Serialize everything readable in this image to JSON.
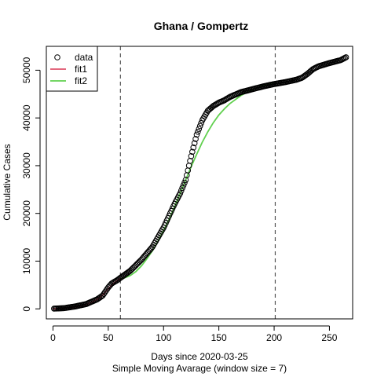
{
  "chart_data": {
    "type": "scatter",
    "title": "Ghana / Gompertz",
    "xlabel": "Days since 2020-03-25",
    "ylabel": "Cumulative Cases",
    "subtitle": "Simple Moving Avarage (window size = 7)",
    "xlim": [
      -6,
      271
    ],
    "ylim": [
      -2100,
      55000
    ],
    "x_ticks": [
      0,
      50,
      100,
      150,
      200,
      250
    ],
    "x_tick_labels": [
      "0",
      "50",
      "100",
      "150",
      "200",
      "250"
    ],
    "y_ticks": [
      0,
      10000,
      20000,
      30000,
      40000,
      50000
    ],
    "y_tick_labels": [
      "0",
      "10000",
      "20000",
      "30000",
      "40000",
      "50000"
    ],
    "grid": false,
    "legend_position": "top-left",
    "legend": [
      {
        "label": "data",
        "kind": "circle",
        "color": "#000000"
      },
      {
        "label": "fit1",
        "kind": "line",
        "color": "#DF536B"
      },
      {
        "label": "fit2",
        "kind": "line",
        "color": "#61D04F"
      }
    ],
    "vlines": [
      61,
      201
    ],
    "data_anchors": {
      "x": [
        1,
        10,
        20,
        30,
        40,
        45,
        50,
        53,
        58,
        61,
        70,
        80,
        90,
        100,
        110,
        115,
        120,
        125,
        130,
        135,
        140,
        145,
        150,
        155,
        160,
        170,
        180,
        190,
        200,
        210,
        220,
        225,
        230,
        235,
        240,
        250,
        260,
        265
      ],
      "y": [
        50,
        150,
        500,
        1000,
        2000,
        2800,
        4500,
        5300,
        6000,
        6500,
        8000,
        10300,
        13000,
        17000,
        22000,
        24200,
        27000,
        32000,
        36500,
        39500,
        41500,
        42500,
        43200,
        43700,
        44400,
        45400,
        46000,
        46600,
        47100,
        47500,
        48000,
        48400,
        49200,
        50200,
        50800,
        51500,
        52100,
        52700
      ]
    },
    "series": [
      {
        "name": "fit1",
        "color": "#DF536B",
        "x": [
          0,
          5,
          10,
          15,
          20,
          25,
          30,
          35,
          40,
          45,
          50,
          55,
          61
        ],
        "y": [
          30,
          60,
          120,
          220,
          380,
          620,
          950,
          1400,
          2000,
          2900,
          4200,
          5400,
          6400
        ]
      },
      {
        "name": "fit2",
        "color": "#61D04F",
        "x": [
          61,
          65,
          70,
          75,
          80,
          85,
          90,
          95,
          100,
          105,
          110,
          115,
          120,
          125,
          130,
          135,
          140,
          145,
          150,
          155,
          160,
          170,
          180,
          190,
          201
        ],
        "y": [
          6300,
          6500,
          7000,
          7800,
          9000,
          10500,
          12200,
          14200,
          16400,
          18800,
          21400,
          24200,
          27000,
          29800,
          32400,
          34900,
          37100,
          39000,
          40600,
          41900,
          43000,
          44700,
          45900,
          46800,
          47500
        ]
      }
    ]
  }
}
